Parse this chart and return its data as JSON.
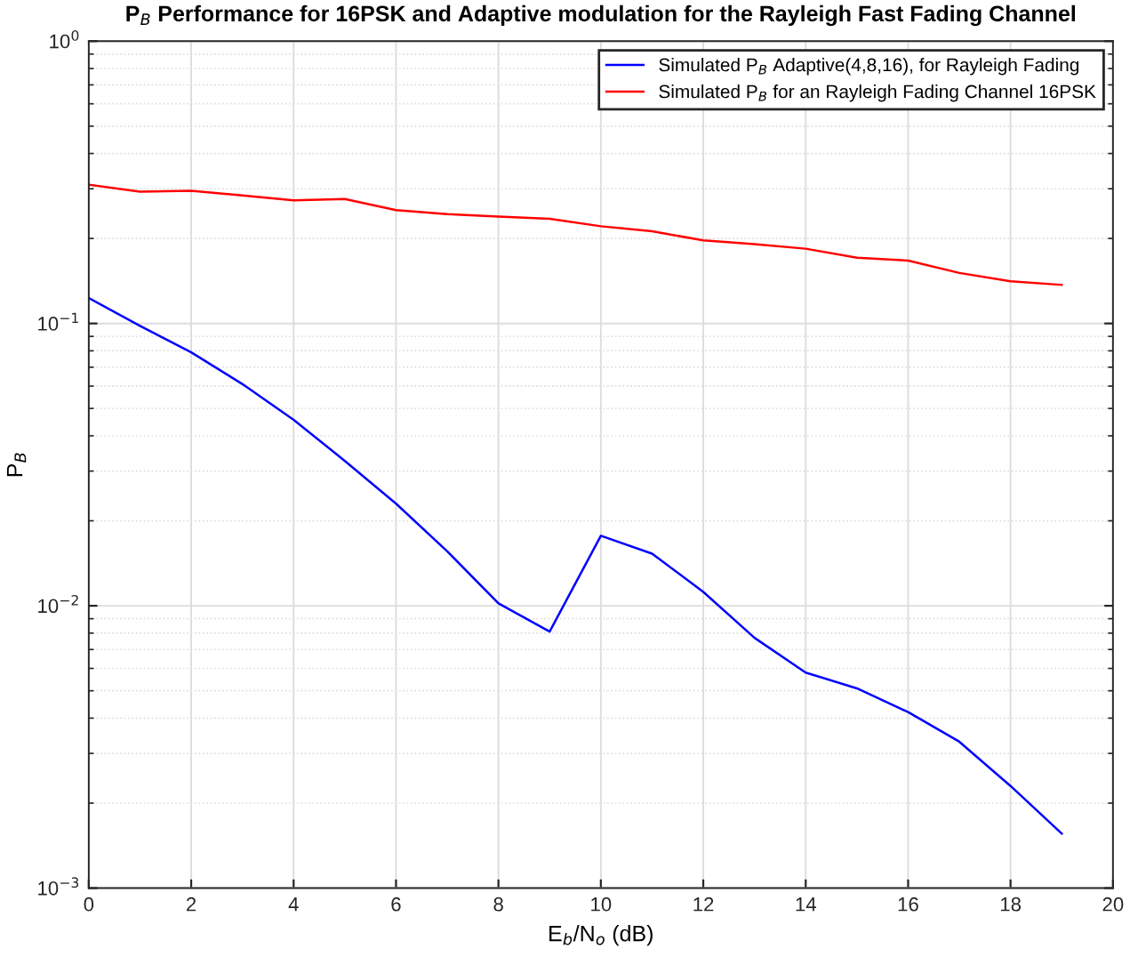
{
  "chart_data": {
    "type": "line",
    "title": "P$_{B}$ Performance for 16PSK and Adaptive modulation for the Rayleigh Fast Fading Channel",
    "xlabel": "E$_{b}$/N$_{o}$ (dB)",
    "ylabel": "P$_{B}$",
    "x": [
      0,
      1,
      2,
      3,
      4,
      5,
      6,
      7,
      8,
      9,
      10,
      11,
      12,
      13,
      14,
      15,
      16,
      17,
      18,
      19
    ],
    "series": [
      {
        "name": "Simulated P$_{B}$ Adaptive(4,8,16), for Rayleigh Fading",
        "color": "#0000ff",
        "values": [
          0.123,
          0.098,
          0.079,
          0.061,
          0.0456,
          0.0326,
          0.023,
          0.0156,
          0.0102,
          0.0081,
          0.0177,
          0.0153,
          0.0112,
          0.0077,
          0.0058,
          0.0051,
          0.0042,
          0.0033,
          0.0023,
          0.00156
        ]
      },
      {
        "name": "Simulated P$_{B}$ for an Rayleigh Fading Channel 16PSK",
        "color": "#ff0000",
        "values": [
          0.31,
          0.293,
          0.295,
          0.284,
          0.273,
          0.276,
          0.252,
          0.244,
          0.239,
          0.235,
          0.221,
          0.212,
          0.197,
          0.191,
          0.184,
          0.171,
          0.167,
          0.151,
          0.141,
          0.137
        ]
      }
    ],
    "log": "y",
    "xlim": [
      0,
      20
    ],
    "xticks": [
      0,
      2,
      4,
      6,
      8,
      10,
      12,
      14,
      16,
      18,
      20
    ],
    "ylim": [
      0.001,
      1
    ],
    "yticks": [
      {
        "value": 0.001,
        "label": "10$^{−3}$"
      },
      {
        "value": 0.01,
        "label": "10$^{−2}$"
      },
      {
        "value": 0.1,
        "label": "10$^{−1}$"
      },
      {
        "value": 1,
        "label": "10$^{0}$"
      }
    ],
    "grid": true,
    "legend": "top right",
    "line_style": "solid",
    "marker": "none"
  }
}
